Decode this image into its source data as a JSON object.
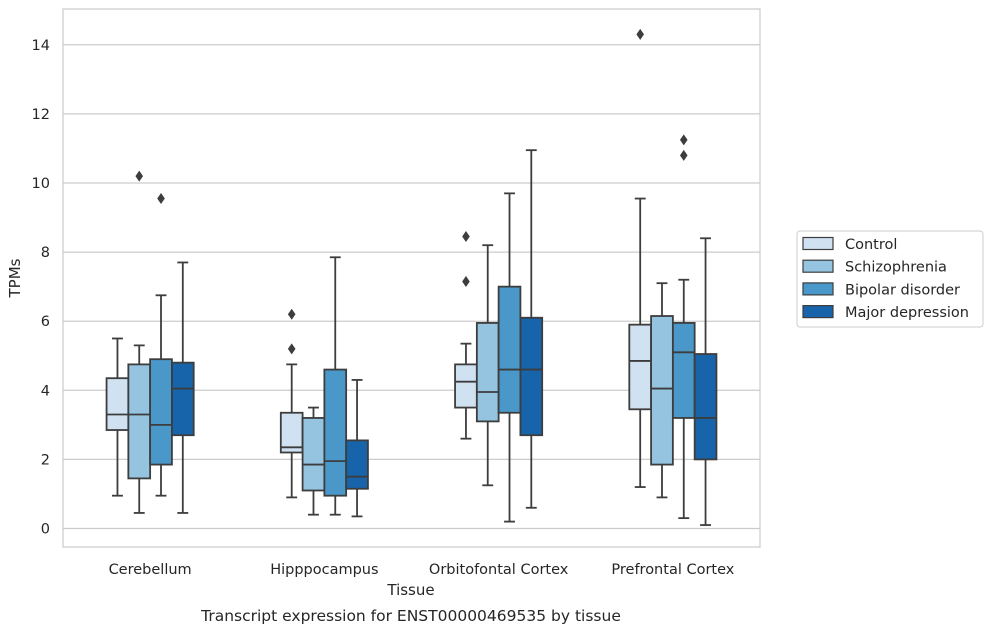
{
  "chart_data": {
    "type": "box",
    "title": "Transcript expression for ENST00000469535 by tissue",
    "xlabel": "Tissue",
    "ylabel": "TPMs",
    "ylim": [
      -0.5,
      15.1
    ],
    "yticks": [
      0,
      2,
      4,
      6,
      8,
      10,
      12,
      14
    ],
    "categories": [
      "Cerebellum",
      "Hipppocampus",
      "Orbitofontal Cortex",
      "Prefrontal Cortex"
    ],
    "grid": true,
    "legend_position": "right",
    "series": [
      {
        "name": "Control",
        "color": "#d0e1f2",
        "boxes": [
          {
            "whislo": 0.95,
            "q1": 2.85,
            "med": 3.3,
            "q3": 4.35,
            "whishi": 5.5,
            "fliers": []
          },
          {
            "whislo": 0.9,
            "q1": 2.2,
            "med": 2.35,
            "q3": 3.35,
            "whishi": 4.75,
            "fliers": [
              5.2,
              6.2
            ]
          },
          {
            "whislo": 2.6,
            "q1": 3.5,
            "med": 4.25,
            "q3": 4.75,
            "whishi": 5.35,
            "fliers": [
              7.15,
              8.45
            ]
          },
          {
            "whislo": 1.2,
            "q1": 3.45,
            "med": 4.85,
            "q3": 5.9,
            "whishi": 9.55,
            "fliers": [
              14.3
            ]
          }
        ]
      },
      {
        "name": "Schizophrenia",
        "color": "#94c4df",
        "boxes": [
          {
            "whislo": 0.45,
            "q1": 1.45,
            "med": 3.3,
            "q3": 4.75,
            "whishi": 5.3,
            "fliers": [
              10.2
            ]
          },
          {
            "whislo": 0.4,
            "q1": 1.1,
            "med": 1.85,
            "q3": 3.2,
            "whishi": 3.5,
            "fliers": []
          },
          {
            "whislo": 1.25,
            "q1": 3.1,
            "med": 3.95,
            "q3": 5.95,
            "whishi": 8.2,
            "fliers": []
          },
          {
            "whislo": 0.9,
            "q1": 1.85,
            "med": 4.05,
            "q3": 6.15,
            "whishi": 7.1,
            "fliers": []
          }
        ]
      },
      {
        "name": "Bipolar disorder",
        "color": "#4a98c9",
        "boxes": [
          {
            "whislo": 0.95,
            "q1": 1.85,
            "med": 3.0,
            "q3": 4.9,
            "whishi": 6.75,
            "fliers": [
              9.55
            ]
          },
          {
            "whislo": 0.4,
            "q1": 0.95,
            "med": 1.95,
            "q3": 4.6,
            "whishi": 7.85,
            "fliers": []
          },
          {
            "whislo": 0.2,
            "q1": 3.35,
            "med": 4.6,
            "q3": 7.0,
            "whishi": 9.7,
            "fliers": []
          },
          {
            "whislo": 0.3,
            "q1": 3.2,
            "med": 5.1,
            "q3": 5.95,
            "whishi": 7.2,
            "fliers": [
              10.8,
              11.25
            ]
          }
        ]
      },
      {
        "name": "Major depression",
        "color": "#1764ab",
        "boxes": [
          {
            "whislo": 0.45,
            "q1": 2.7,
            "med": 4.05,
            "q3": 4.8,
            "whishi": 7.7,
            "fliers": []
          },
          {
            "whislo": 0.35,
            "q1": 1.15,
            "med": 1.5,
            "q3": 2.55,
            "whishi": 4.3,
            "fliers": []
          },
          {
            "whislo": 0.6,
            "q1": 2.7,
            "med": 4.6,
            "q3": 6.1,
            "whishi": 10.95,
            "fliers": []
          },
          {
            "whislo": 0.1,
            "q1": 2.0,
            "med": 3.2,
            "q3": 5.05,
            "whishi": 8.4,
            "fliers": []
          }
        ]
      }
    ]
  }
}
